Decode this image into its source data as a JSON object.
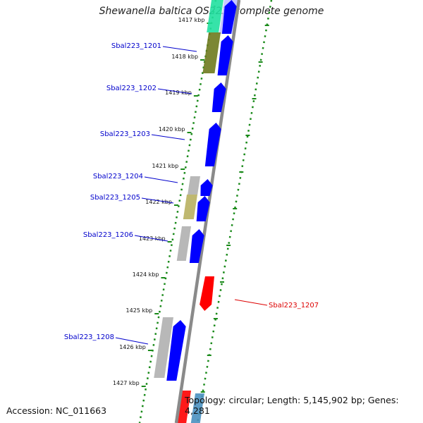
{
  "title": "Shewanella baltica OS223, complete genome",
  "footer": {
    "accession": "Accession: NC_011663",
    "topology": "Topology: circular; Length: 5,145,902 bp; Genes: 4,281"
  },
  "colors": {
    "backbone": "#8a8a8a",
    "forward_cds": "#0000ff",
    "reverse_cds": "#ff0000",
    "tick_green": "#1a8a1a",
    "label_blue": "#0000cc",
    "label_red": "#dd0000",
    "blast_grey": "#b0b0b0",
    "blast_olive": "#6e7a1e",
    "blast_khaki": "#b8b060",
    "blast_teal": "#20e0a0",
    "blast_lavender": "#c0c0ff",
    "blast_steel": "#4a90c0"
  },
  "kbp_labels": [
    "1417 kbp",
    "1418 kbp",
    "1419 kbp",
    "1420 kbp",
    "1421 kbp",
    "1422 kbp",
    "1423 kbp",
    "1424 kbp",
    "1425 kbp",
    "1426 kbp",
    "1427 kbp"
  ],
  "gene_labels": [
    {
      "id": "Sbal223_1201",
      "strand": "forward"
    },
    {
      "id": "Sbal223_1202",
      "strand": "forward"
    },
    {
      "id": "Sbal223_1203",
      "strand": "forward"
    },
    {
      "id": "Sbal223_1204",
      "strand": "forward"
    },
    {
      "id": "Sbal223_1205",
      "strand": "forward"
    },
    {
      "id": "Sbal223_1206",
      "strand": "forward"
    },
    {
      "id": "Sbal223_1207",
      "strand": "reverse"
    },
    {
      "id": "Sbal223_1208",
      "strand": "forward"
    }
  ]
}
